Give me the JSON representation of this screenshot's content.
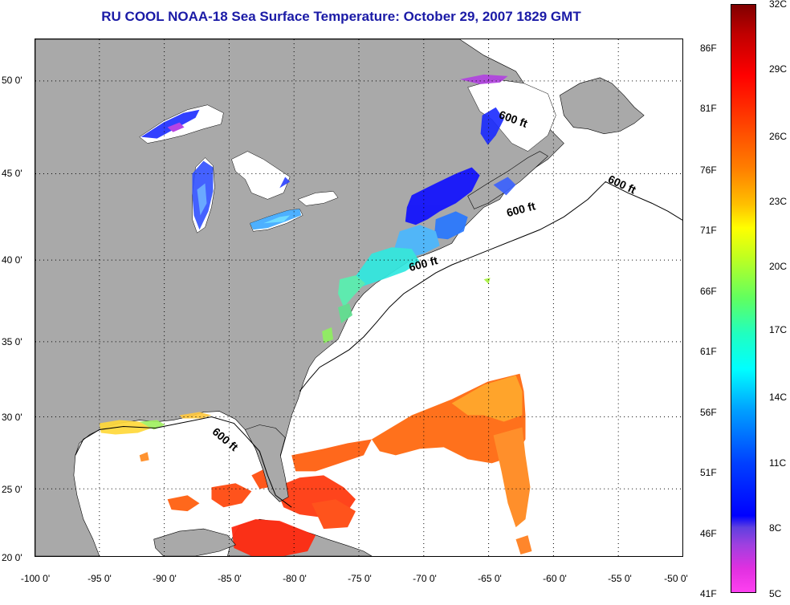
{
  "title": "RU COOL  NOAA-18  Sea Surface Temperature:  October 29, 2007 1829 GMT",
  "latitude_labels": [
    "50 0'",
    "45 0'",
    "40 0'",
    "35 0'",
    "30 0'",
    "25 0'",
    "20 0'"
  ],
  "longitude_labels": [
    "-100 0'",
    "-95 0'",
    "-90 0'",
    "-85 0'",
    "-80 0'",
    "-75 0'",
    "-70 0'",
    "-65 0'",
    "-60 0'",
    "-55 0'",
    "-50 0'"
  ],
  "contour_label": "600 ft",
  "colorbar": {
    "celsius_labels": [
      "32C",
      "29C",
      "26C",
      "23C",
      "20C",
      "17C",
      "14C",
      "11C",
      "8C",
      "5C"
    ],
    "fahrenheit_labels": [
      "86F",
      "81F",
      "76F",
      "71F",
      "66F",
      "61F",
      "56F",
      "51F",
      "46F",
      "41F"
    ]
  },
  "colors": {
    "title": "#1a1aa6",
    "land": "#a9a9a9",
    "ocean_no_data": "#ffffff",
    "grid": "#000000"
  }
}
